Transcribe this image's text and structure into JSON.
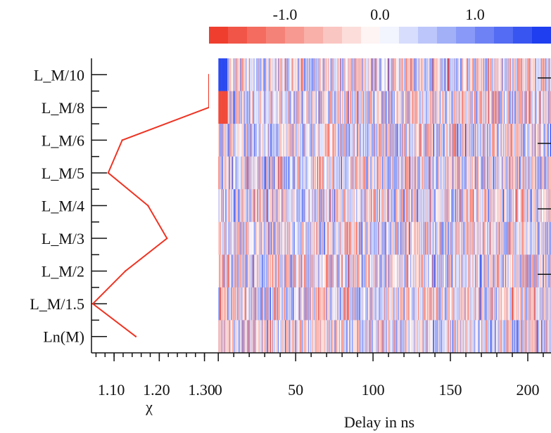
{
  "chart_data": [
    {
      "type": "line",
      "title": "",
      "xlabel": "χ",
      "ylabel": "",
      "x_ticks": [
        "1.10",
        "1.20",
        "1.30"
      ],
      "xlim": [
        1.05,
        1.31
      ],
      "categories": [
        "L_M/10",
        "L_M/8",
        "L_M/6",
        "L_M/5",
        "L_M/4",
        "L_M/3",
        "L_M/2",
        "L_M/1.5",
        "Ln(M)"
      ],
      "series": [
        {
          "color": "#ee3322",
          "values": [
            1.31,
            1.31,
            1.118,
            1.087,
            1.175,
            1.217,
            1.125,
            1.053,
            1.148
          ]
        }
      ],
      "grid": false
    },
    {
      "type": "heatmap",
      "title": "",
      "xlabel": "Delay in ns",
      "ylabel": "",
      "x_ticks": [
        "0",
        "50",
        "100",
        "150",
        "200"
      ],
      "xlim": [
        -6,
        215
      ],
      "rows": [
        "L_M/10",
        "L_M/8",
        "L_M/6",
        "L_M/5",
        "L_M/4",
        "L_M/3",
        "L_M/2",
        "L_M/1.5",
        "Ln(M)"
      ],
      "colorbar": {
        "ticks": [
          "-1.0",
          "0.0",
          "1.0"
        ],
        "tick_values": [
          -1.0,
          0.0,
          1.0
        ],
        "range": [
          -1.8,
          1.8
        ],
        "low_color": "#ee3322",
        "mid_color": "#ffffff",
        "high_color": "#1133ee"
      },
      "highlights": [
        {
          "row": "L_M/10",
          "x_range": [
            0,
            6
          ],
          "value": 1.6
        },
        {
          "row": "L_M/8",
          "x_range": [
            0,
            6
          ],
          "value": -1.6
        }
      ],
      "grid": false
    }
  ]
}
